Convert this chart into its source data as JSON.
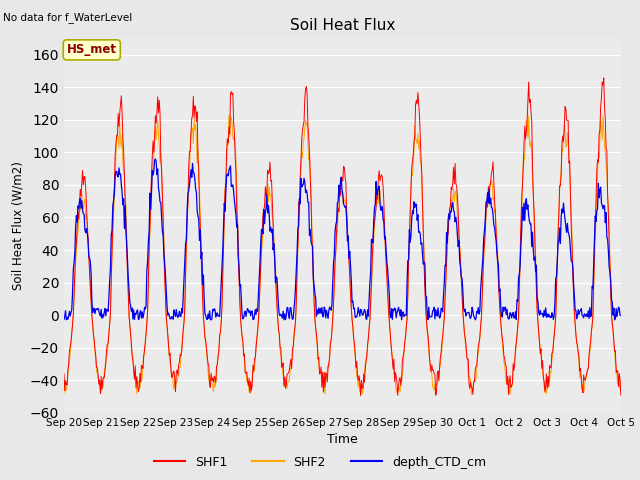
{
  "title": "Soil Heat Flux",
  "ylabel": "Soil Heat Flux (W/m2)",
  "xlabel": "Time",
  "top_left_text": "No data for f_WaterLevel",
  "station_label": "HS_met",
  "ylim": [
    -60,
    170
  ],
  "yticks": [
    -60,
    -40,
    -20,
    0,
    20,
    40,
    60,
    80,
    100,
    120,
    140,
    160
  ],
  "legend_labels": [
    "SHF1",
    "SHF2",
    "depth_CTD_cm"
  ],
  "legend_colors": [
    "#ff0000",
    "#ffa500",
    "#0000ee"
  ],
  "line_colors": {
    "SHF1": "#ff0000",
    "SHF2": "#ffa500",
    "depth_CTD_cm": "#0000ee"
  },
  "background_color": "#e8e8e8",
  "plot_bg_color": "#ebebeb",
  "n_days": 15,
  "grid_color": "#ffffff"
}
